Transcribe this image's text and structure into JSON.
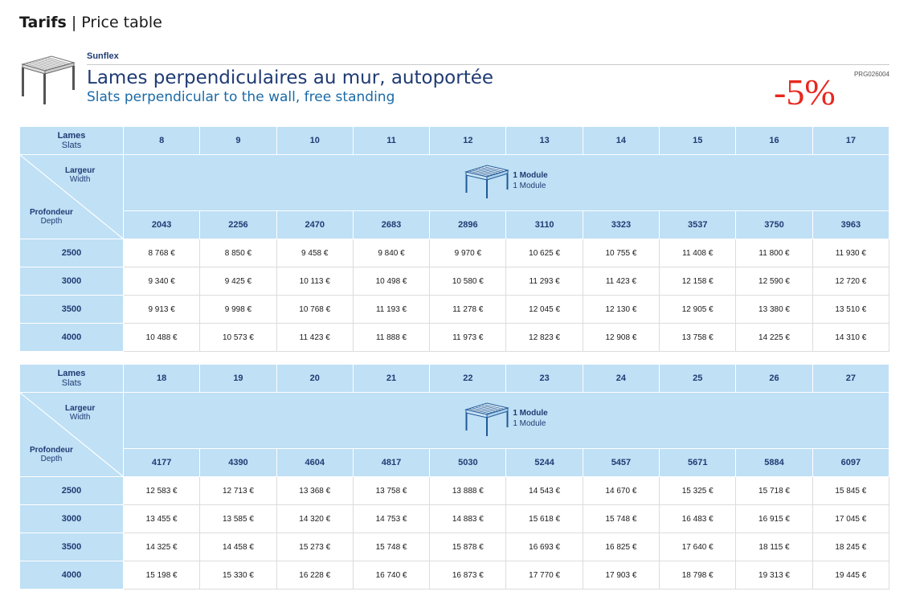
{
  "header": {
    "title_bold": "Tarifs",
    "separator": " | ",
    "title_rest": "Price table"
  },
  "product": {
    "brand": "Sunflex",
    "ref": "PRG026004",
    "title_fr": "Lames perpendiculaires au mur, autoportée",
    "title_en": "Slats perpendicular to the wall, free standing",
    "discount": "-5%"
  },
  "labels": {
    "slats_fr": "Lames",
    "slats_en": "Slats",
    "width_fr": "Largeur",
    "width_en": "Width",
    "depth_fr": "Profondeur",
    "depth_en": "Depth",
    "module_fr": "1 Module",
    "module_en": "1 Module"
  },
  "tables": [
    {
      "slats": [
        "8",
        "9",
        "10",
        "11",
        "12",
        "13",
        "14",
        "15",
        "16",
        "17"
      ],
      "widths": [
        "2043",
        "2256",
        "2470",
        "2683",
        "2896",
        "3110",
        "3323",
        "3537",
        "3750",
        "3963"
      ],
      "rows": [
        {
          "depth": "2500",
          "prices": [
            "8 768 €",
            "8 850 €",
            "9 458 €",
            "9 840 €",
            "9 970 €",
            "10 625 €",
            "10 755 €",
            "11 408 €",
            "11 800 €",
            "11 930 €"
          ]
        },
        {
          "depth": "3000",
          "prices": [
            "9 340 €",
            "9 425 €",
            "10 113 €",
            "10 498 €",
            "10 580 €",
            "11 293 €",
            "11 423 €",
            "12 158 €",
            "12 590 €",
            "12 720 €"
          ]
        },
        {
          "depth": "3500",
          "prices": [
            "9 913 €",
            "9 998 €",
            "10 768 €",
            "11 193 €",
            "11 278 €",
            "12 045 €",
            "12 130 €",
            "12 905 €",
            "13 380 €",
            "13 510 €"
          ]
        },
        {
          "depth": "4000",
          "prices": [
            "10 488 €",
            "10 573 €",
            "11 423 €",
            "11 888 €",
            "11 973 €",
            "12 823 €",
            "12 908 €",
            "13 758 €",
            "14 225 €",
            "14 310 €"
          ]
        }
      ]
    },
    {
      "slats": [
        "18",
        "19",
        "20",
        "21",
        "22",
        "23",
        "24",
        "25",
        "26",
        "27"
      ],
      "widths": [
        "4177",
        "4390",
        "4604",
        "4817",
        "5030",
        "5244",
        "5457",
        "5671",
        "5884",
        "6097"
      ],
      "rows": [
        {
          "depth": "2500",
          "prices": [
            "12 583 €",
            "12 713 €",
            "13 368 €",
            "13 758 €",
            "13 888 €",
            "14 543 €",
            "14 670 €",
            "15 325 €",
            "15 718 €",
            "15 845 €"
          ]
        },
        {
          "depth": "3000",
          "prices": [
            "13 455 €",
            "13 585 €",
            "14 320 €",
            "14 753 €",
            "14 883 €",
            "15 618 €",
            "15 748 €",
            "16 483 €",
            "16 915 €",
            "17 045 €"
          ]
        },
        {
          "depth": "3500",
          "prices": [
            "14 325 €",
            "14 458 €",
            "15 273 €",
            "15 748 €",
            "15 878 €",
            "16 693 €",
            "16 825 €",
            "17 640 €",
            "18 115 €",
            "18 245 €"
          ]
        },
        {
          "depth": "4000",
          "prices": [
            "15 198 €",
            "15 330 €",
            "16 228 €",
            "16 740 €",
            "16 873 €",
            "17 770 €",
            "17 903 €",
            "18 798 €",
            "19 313 €",
            "19 445 €"
          ]
        }
      ]
    }
  ]
}
